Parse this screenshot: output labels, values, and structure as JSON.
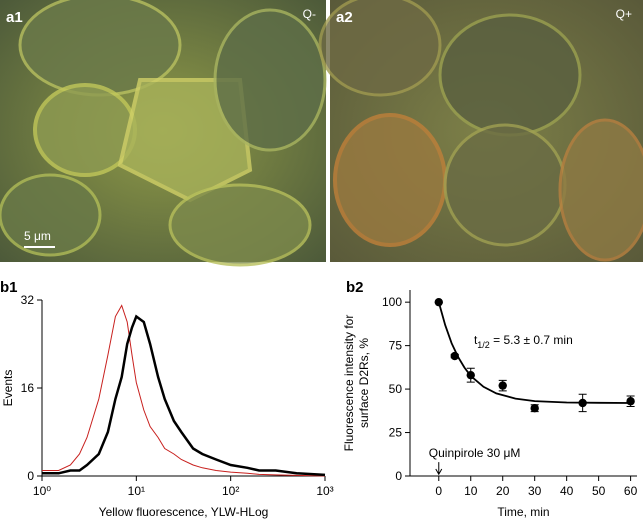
{
  "panels": [
    {
      "label": "a1",
      "condition": "Q-",
      "scale_bar": "5 μm"
    },
    {
      "label": "a2",
      "condition": "Q+"
    }
  ],
  "chart_data": [
    {
      "type": "line",
      "panel_label": "b1",
      "ylabel": "Events",
      "xlabel": "Yellow fluorescence, YLW-HLog",
      "xscale": "log",
      "xlim": [
        1,
        1000
      ],
      "xticks": [
        {
          "value": 1,
          "label": "10⁰"
        },
        {
          "value": 10,
          "label": "10¹"
        },
        {
          "value": 100,
          "label": "10²"
        },
        {
          "value": 1000,
          "label": "10³"
        }
      ],
      "ylim": [
        0,
        32
      ],
      "yticks": [
        0,
        16,
        32
      ],
      "x": [
        1,
        1.5,
        2,
        2.5,
        3,
        4,
        5,
        6,
        7,
        8,
        9,
        10,
        12,
        14,
        17,
        20,
        25,
        30,
        40,
        50,
        70,
        100,
        150,
        200,
        300,
        500,
        1000
      ],
      "series": [
        {
          "color": "#c8201e",
          "width": 1,
          "values": [
            1,
            1,
            2,
            4,
            7,
            14,
            22,
            29,
            31,
            28,
            22,
            17,
            12,
            9,
            7,
            5,
            4,
            3,
            2,
            1.5,
            1,
            0.7,
            0.5,
            0.3,
            0.2,
            0.1,
            0
          ]
        },
        {
          "color": "#000000",
          "width": 2.5,
          "values": [
            0.5,
            0.5,
            1,
            1,
            2,
            4,
            8,
            14,
            18,
            24,
            27,
            29,
            28,
            24,
            18,
            14,
            10,
            8,
            5,
            4,
            3,
            2,
            1.5,
            1,
            1,
            0.5,
            0.2
          ]
        }
      ]
    },
    {
      "type": "scatter",
      "panel_label": "b2",
      "ylabel": [
        "Fluorescence intensity for",
        "surface D2Rs, %"
      ],
      "xlabel": "Time, min",
      "xlim": [
        -9,
        62
      ],
      "xticks": [
        0,
        10,
        20,
        30,
        40,
        50,
        60
      ],
      "ylim": [
        0,
        107
      ],
      "yticks": [
        0,
        25,
        50,
        75,
        100
      ],
      "x": [
        0,
        5,
        10,
        20,
        30,
        45,
        60
      ],
      "values": [
        100,
        69,
        58,
        52,
        39,
        42,
        43
      ],
      "errors": [
        0,
        1,
        4,
        3,
        2,
        5,
        3
      ],
      "fit": {
        "x": [
          0,
          2,
          4,
          6,
          8,
          10,
          14,
          18,
          24,
          30,
          40,
          50,
          60
        ],
        "values": [
          100,
          86.8,
          76.4,
          68.6,
          62.4,
          57.6,
          51.3,
          47.5,
          44.5,
          43.1,
          42.3,
          42.1,
          42.0
        ]
      },
      "half_life": {
        "t": "t",
        "sub": "1/2",
        "rest": " = 5.3 ± 0.7 min"
      },
      "stimulus": {
        "text": "Quinpirole 30 μM",
        "x": 0
      }
    }
  ]
}
